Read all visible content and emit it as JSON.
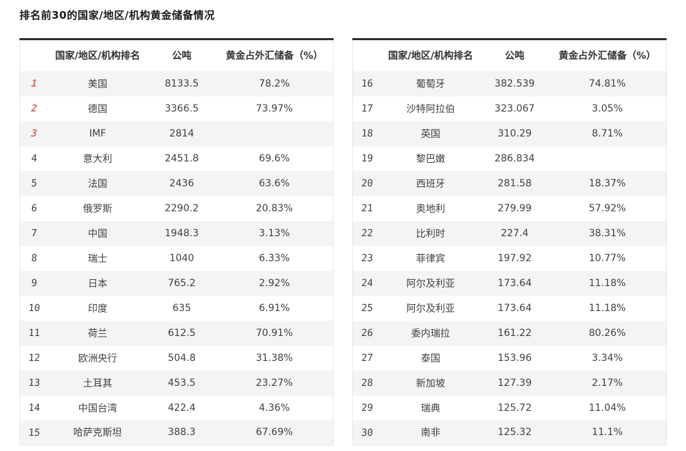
{
  "page": {
    "title": "排名前30的国家/地区/机构黄金储备情况"
  },
  "colors": {
    "accent_red": "#ee5f5f",
    "row_alt_bg": "#f4f4f4",
    "table_top_border": "#2f2f2f"
  },
  "columns": {
    "rank_country_header": "国家/地区/机构排名",
    "tons_header": "公吨",
    "percent_header": "黄金占外汇储备（%）"
  },
  "left_table": {
    "rows": [
      {
        "rank": "1",
        "name": "美国",
        "tons": "8133.5",
        "percent": "78.2%"
      },
      {
        "rank": "2",
        "name": "德国",
        "tons": "3366.5",
        "percent": "73.97%"
      },
      {
        "rank": "3",
        "name": "IMF",
        "tons": "2814",
        "percent": ""
      },
      {
        "rank": "4",
        "name": "意大利",
        "tons": "2451.8",
        "percent": "69.6%"
      },
      {
        "rank": "5",
        "name": "法国",
        "tons": "2436",
        "percent": "63.6%"
      },
      {
        "rank": "6",
        "name": "俄罗斯",
        "tons": "2290.2",
        "percent": "20.83%"
      },
      {
        "rank": "7",
        "name": "中国",
        "tons": "1948.3",
        "percent": "3.13%"
      },
      {
        "rank": "8",
        "name": "瑞士",
        "tons": "1040",
        "percent": "6.33%"
      },
      {
        "rank": "9",
        "name": "日本",
        "tons": "765.2",
        "percent": "2.92%"
      },
      {
        "rank": "10",
        "name": "印度",
        "tons": "635",
        "percent": "6.91%"
      },
      {
        "rank": "11",
        "name": "荷兰",
        "tons": "612.5",
        "percent": "70.91%"
      },
      {
        "rank": "12",
        "name": "欧洲央行",
        "tons": "504.8",
        "percent": "31.38%"
      },
      {
        "rank": "13",
        "name": "土耳其",
        "tons": "453.5",
        "percent": "23.27%"
      },
      {
        "rank": "14",
        "name": "中国台湾",
        "tons": "422.4",
        "percent": "4.36%"
      },
      {
        "rank": "15",
        "name": "哈萨克斯坦",
        "tons": "388.3",
        "percent": "67.69%"
      }
    ]
  },
  "right_table": {
    "rows": [
      {
        "rank": "16",
        "name": "葡萄牙",
        "tons": "382.539",
        "percent": "74.81%"
      },
      {
        "rank": "17",
        "name": "沙特阿拉伯",
        "tons": "323.067",
        "percent": "3.05%"
      },
      {
        "rank": "18",
        "name": "英国",
        "tons": "310.29",
        "percent": "8.71%"
      },
      {
        "rank": "19",
        "name": "黎巴嫩",
        "tons": "286.834",
        "percent": ""
      },
      {
        "rank": "20",
        "name": "西班牙",
        "tons": "281.58",
        "percent": "18.37%"
      },
      {
        "rank": "21",
        "name": "奥地利",
        "tons": "279.99",
        "percent": "57.92%"
      },
      {
        "rank": "22",
        "name": "比利时",
        "tons": "227.4",
        "percent": "38.31%"
      },
      {
        "rank": "23",
        "name": "菲律宾",
        "tons": "197.92",
        "percent": "10.77%"
      },
      {
        "rank": "24",
        "name": "阿尔及利亚",
        "tons": "173.64",
        "percent": "11.18%"
      },
      {
        "rank": "25",
        "name": "阿尔及利亚",
        "tons": "173.64",
        "percent": "11.18%"
      },
      {
        "rank": "26",
        "name": "委内瑞拉",
        "tons": "161.22",
        "percent": "80.26%"
      },
      {
        "rank": "27",
        "name": "泰国",
        "tons": "153.96",
        "percent": "3.34%"
      },
      {
        "rank": "28",
        "name": "新加坡",
        "tons": "127.39",
        "percent": "2.17%"
      },
      {
        "rank": "29",
        "name": "瑞典",
        "tons": "125.72",
        "percent": "11.04%"
      },
      {
        "rank": "30",
        "name": "南非",
        "tons": "125.32",
        "percent": "11.1%"
      }
    ]
  }
}
